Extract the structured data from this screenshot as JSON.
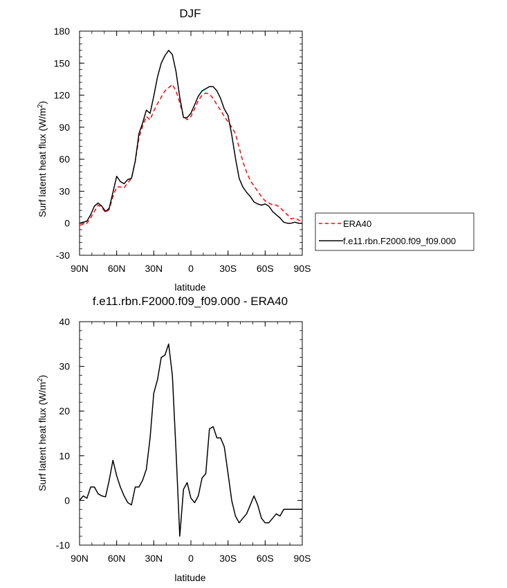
{
  "chart_data": [
    {
      "type": "line",
      "title": "DJF",
      "xlabel": "latitude",
      "ylabel": "Surf latent heat flux (W/m",
      "ylabel_sup": "2",
      "ylabel_tail": ")",
      "xlim": [
        90,
        -90
      ],
      "ylim": [
        -30,
        180
      ],
      "xticks": [
        90,
        60,
        30,
        0,
        -30,
        -60,
        -90
      ],
      "xtick_labels": [
        "90N",
        "60N",
        "30N",
        "0",
        "30S",
        "60S",
        "90S"
      ],
      "yticks": [
        -30,
        0,
        30,
        60,
        90,
        120,
        150,
        180
      ],
      "ytick_labels": [
        "-30",
        "0",
        "30",
        "60",
        "90",
        "120",
        "150",
        "180"
      ],
      "legend_position": "right",
      "series": [
        {
          "name": "ERA40",
          "color": "#ff0000",
          "dash": "dashed",
          "x": [
            90,
            87,
            84,
            81,
            78,
            75,
            72,
            69,
            66,
            63,
            60,
            57,
            54,
            51,
            48,
            45,
            42,
            39,
            36,
            33,
            30,
            27,
            24,
            21,
            18,
            15,
            12,
            9,
            6,
            3,
            0,
            -3,
            -6,
            -9,
            -12,
            -15,
            -18,
            -21,
            -24,
            -27,
            -30,
            -33,
            -36,
            -39,
            -42,
            -45,
            -48,
            -51,
            -54,
            -57,
            -60,
            -63,
            -66,
            -69,
            -72,
            -75,
            -78,
            -81,
            -84,
            -87,
            -90
          ],
          "y": [
            -2,
            -1,
            0,
            5,
            11,
            17,
            15,
            10,
            13,
            25,
            34,
            34,
            33,
            38,
            42,
            58,
            80,
            91,
            100,
            97,
            105,
            112,
            118,
            124,
            127,
            130,
            124,
            113,
            100,
            97,
            100,
            107,
            115,
            120,
            122,
            121,
            117,
            111,
            106,
            100,
            95,
            90,
            84,
            71,
            58,
            48,
            40,
            35,
            30,
            25,
            21,
            19,
            17,
            17,
            15,
            11,
            8,
            4,
            5,
            3,
            2
          ]
        },
        {
          "name": "f.e11.rbn.F2000.f09_f09.000",
          "color": "#000000",
          "dash": "solid",
          "x": [
            90,
            87,
            84,
            81,
            78,
            75,
            72,
            69,
            66,
            63,
            60,
            57,
            54,
            51,
            48,
            45,
            42,
            39,
            36,
            33,
            30,
            27,
            24,
            21,
            18,
            15,
            12,
            9,
            6,
            3,
            0,
            -3,
            -6,
            -9,
            -12,
            -15,
            -18,
            -21,
            -24,
            -27,
            -30,
            -33,
            -36,
            -39,
            -42,
            -45,
            -48,
            -51,
            -54,
            -57,
            -60,
            -63,
            -66,
            -69,
            -72,
            -75,
            -78,
            -81,
            -84,
            -87,
            -90
          ],
          "y": [
            0,
            1,
            2,
            8,
            16,
            19,
            16,
            11,
            14,
            29,
            44,
            39,
            37,
            41,
            42,
            58,
            84,
            94,
            106,
            103,
            119,
            137,
            150,
            157,
            162,
            158,
            142,
            118,
            99,
            99,
            103,
            111,
            119,
            124,
            126,
            128,
            128,
            124,
            117,
            107,
            101,
            83,
            61,
            42,
            34,
            29,
            25,
            20,
            18,
            17,
            18,
            16,
            11,
            8,
            5,
            1,
            0,
            0,
            1,
            0,
            0
          ]
        }
      ]
    },
    {
      "type": "line",
      "title": "f.e11.rbn.F2000.f09_f09.000 - ERA40",
      "xlabel": "latitude",
      "ylabel": "Surf latent heat flux (W/m",
      "ylabel_sup": "2",
      "ylabel_tail": ")",
      "xlim": [
        90,
        -90
      ],
      "ylim": [
        -10,
        40
      ],
      "xticks": [
        90,
        60,
        30,
        0,
        -30,
        -60,
        -90
      ],
      "xtick_labels": [
        "90N",
        "60N",
        "30N",
        "0",
        "30S",
        "60S",
        "90S"
      ],
      "yticks": [
        -10,
        0,
        10,
        20,
        30,
        40
      ],
      "ytick_labels": [
        "-10",
        "0",
        "10",
        "20",
        "30",
        "40"
      ],
      "series": [
        {
          "color": "#000000",
          "dash": "solid",
          "x": [
            90,
            87,
            84,
            81,
            78,
            75,
            72,
            69,
            66,
            63,
            60,
            57,
            54,
            51,
            48,
            45,
            42,
            39,
            36,
            33,
            30,
            27,
            24,
            21,
            18,
            15,
            12,
            9,
            6,
            3,
            0,
            -3,
            -6,
            -9,
            -12,
            -15,
            -18,
            -21,
            -24,
            -27,
            -30,
            -33,
            -36,
            -39,
            -42,
            -45,
            -48,
            -51,
            -54,
            -57,
            -60,
            -63,
            -66,
            -69,
            -72,
            -75,
            -78,
            -81,
            -84,
            -87,
            -90
          ],
          "y": [
            0,
            1,
            0.5,
            3,
            3,
            1.5,
            1,
            0.8,
            4.5,
            9,
            5.5,
            3,
            1,
            -0.5,
            -1,
            3,
            3,
            4.5,
            7,
            14,
            24,
            27,
            32,
            32.5,
            35,
            28,
            11,
            -8,
            2.5,
            4,
            0.5,
            -0.5,
            1,
            5,
            6,
            16,
            16.5,
            14,
            14,
            12,
            6,
            0,
            -3.5,
            -5,
            -4,
            -3,
            -1,
            1,
            -1,
            -4,
            -5,
            -5,
            -4,
            -3,
            -3.5,
            -2,
            -2,
            -2,
            -2,
            -2,
            -2
          ]
        }
      ]
    }
  ]
}
